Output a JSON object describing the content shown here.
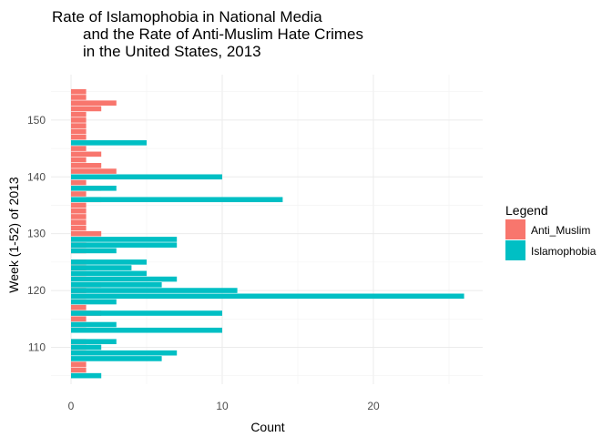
{
  "chart_data": {
    "type": "bar",
    "orientation": "horizontal",
    "title": [
      "Rate of Islamophobia in National Media",
      "and the Rate of Anti-Muslim Hate Crimes",
      "in the United States, 2013"
    ],
    "xlabel": "Count",
    "ylabel": "Week (1-52) of 2013",
    "xlim": [
      0,
      27
    ],
    "ylim": [
      103.5,
      158
    ],
    "x_ticks": [
      0,
      10,
      20
    ],
    "y_ticks": [
      110,
      120,
      130,
      140,
      150
    ],
    "grid": true,
    "legend": {
      "title": "Legend",
      "placement": "right",
      "entries": [
        {
          "label": "Anti_Muslim",
          "color": "#f8766d"
        },
        {
          "label": "Islamophobia",
          "color": "#00bfc4"
        }
      ]
    },
    "series": [
      {
        "name": "Anti_Muslim",
        "color": "#f8766d",
        "points": [
          {
            "week": 106,
            "value": 1
          },
          {
            "week": 107,
            "value": 1
          },
          {
            "week": 110,
            "value": 1
          },
          {
            "week": 111,
            "value": 1
          },
          {
            "week": 114,
            "value": 1
          },
          {
            "week": 115,
            "value": 1
          },
          {
            "week": 116,
            "value": 2
          },
          {
            "week": 117,
            "value": 1
          },
          {
            "week": 118,
            "value": 1
          },
          {
            "week": 120,
            "value": 1
          },
          {
            "week": 121,
            "value": 2
          },
          {
            "week": 123,
            "value": 1
          },
          {
            "week": 124,
            "value": 1
          },
          {
            "week": 125,
            "value": 1
          },
          {
            "week": 127,
            "value": 1
          },
          {
            "week": 128,
            "value": 1
          },
          {
            "week": 130,
            "value": 2
          },
          {
            "week": 131,
            "value": 1
          },
          {
            "week": 132,
            "value": 1
          },
          {
            "week": 133,
            "value": 1
          },
          {
            "week": 134,
            "value": 1
          },
          {
            "week": 135,
            "value": 1
          },
          {
            "week": 136,
            "value": 2
          },
          {
            "week": 137,
            "value": 1
          },
          {
            "week": 138,
            "value": 2
          },
          {
            "week": 139,
            "value": 1
          },
          {
            "week": 141,
            "value": 3
          },
          {
            "week": 142,
            "value": 2
          },
          {
            "week": 143,
            "value": 1
          },
          {
            "week": 144,
            "value": 2
          },
          {
            "week": 145,
            "value": 1
          },
          {
            "week": 147,
            "value": 1
          },
          {
            "week": 148,
            "value": 1
          },
          {
            "week": 149,
            "value": 1
          },
          {
            "week": 150,
            "value": 1
          },
          {
            "week": 151,
            "value": 1
          },
          {
            "week": 152,
            "value": 2
          },
          {
            "week": 153,
            "value": 3
          },
          {
            "week": 154,
            "value": 1
          },
          {
            "week": 155,
            "value": 1
          }
        ]
      },
      {
        "name": "Islamophobia",
        "color": "#00bfc4",
        "points": [
          {
            "week": 105,
            "value": 2
          },
          {
            "week": 108,
            "value": 6
          },
          {
            "week": 109,
            "value": 7
          },
          {
            "week": 110,
            "value": 2
          },
          {
            "week": 111,
            "value": 3
          },
          {
            "week": 113,
            "value": 10
          },
          {
            "week": 114,
            "value": 3
          },
          {
            "week": 116,
            "value": 10
          },
          {
            "week": 118,
            "value": 3
          },
          {
            "week": 119,
            "value": 26
          },
          {
            "week": 120,
            "value": 11
          },
          {
            "week": 121,
            "value": 6
          },
          {
            "week": 122,
            "value": 7
          },
          {
            "week": 123,
            "value": 5
          },
          {
            "week": 124,
            "value": 4
          },
          {
            "week": 125,
            "value": 5
          },
          {
            "week": 127,
            "value": 3
          },
          {
            "week": 128,
            "value": 7
          },
          {
            "week": 129,
            "value": 7
          },
          {
            "week": 136,
            "value": 14
          },
          {
            "week": 138,
            "value": 3
          },
          {
            "week": 140,
            "value": 10
          },
          {
            "week": 146,
            "value": 5
          }
        ]
      }
    ]
  }
}
